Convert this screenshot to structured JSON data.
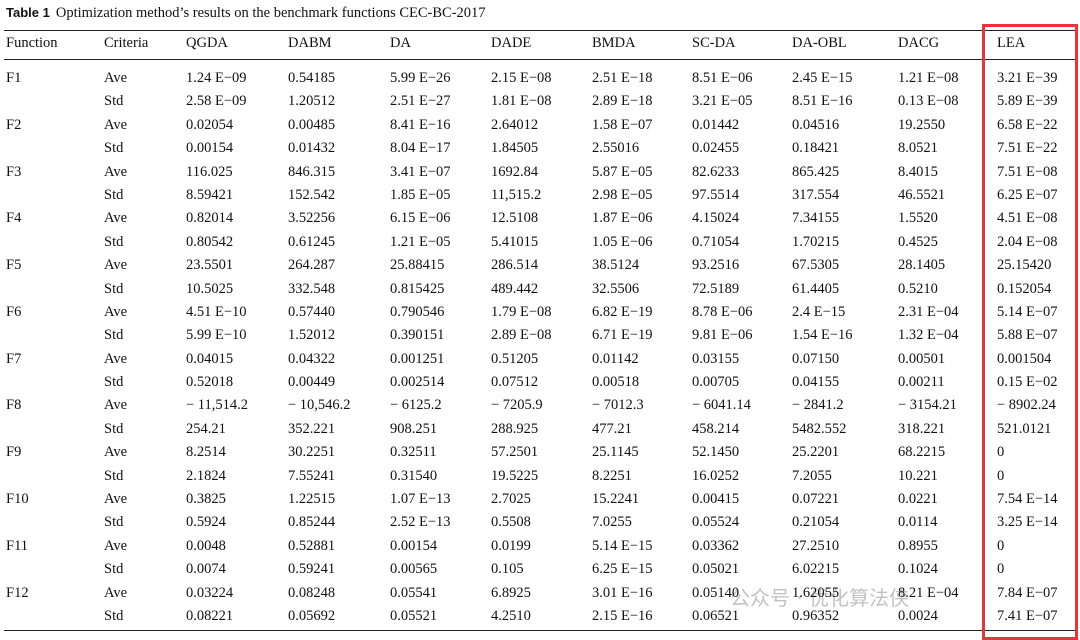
{
  "table": {
    "caption_label": "Table 1",
    "caption": "Optimization method’s results on the benchmark functions CEC-BC-2017",
    "header": [
      "Function",
      "Criteria",
      "QGDA",
      "DABM",
      "DA",
      "DADE",
      "BMDA",
      "SC-DA",
      "DA-OBL",
      "DACG",
      "LEA"
    ],
    "groups": [
      {
        "function": "F1",
        "rows": [
          {
            "criteria": "Ave",
            "values": [
              "1.24 E−09",
              "0.54185",
              "5.99 E−26",
              "2.15 E−08",
              "2.51 E−18",
              "8.51 E−06",
              "2.45 E−15",
              "1.21 E−08",
              "3.21 E−39"
            ]
          },
          {
            "criteria": "Std",
            "values": [
              "2.58 E−09",
              "1.20512",
              "2.51 E−27",
              "1.81 E−08",
              "2.89 E−18",
              "3.21 E−05",
              "8.51 E−16",
              "0.13 E−08",
              "5.89 E−39"
            ]
          }
        ]
      },
      {
        "function": "F2",
        "rows": [
          {
            "criteria": "Ave",
            "values": [
              "0.02054",
              "0.00485",
              "8.41 E−16",
              "2.64012",
              "1.58 E−07",
              "0.01442",
              "0.04516",
              "19.2550",
              "6.58 E−22"
            ]
          },
          {
            "criteria": "Std",
            "values": [
              "0.00154",
              "0.01432",
              "8.04 E−17",
              "1.84505",
              "2.55016",
              "0.02455",
              "0.18421",
              "8.0521",
              "7.51 E−22"
            ]
          }
        ]
      },
      {
        "function": "F3",
        "rows": [
          {
            "criteria": "Ave",
            "values": [
              "116.025",
              "846.315",
              "3.41 E−07",
              "1692.84",
              "5.87 E−05",
              "82.6233",
              "865.425",
              "8.4015",
              "7.51 E−08"
            ]
          },
          {
            "criteria": "Std",
            "values": [
              "8.59421",
              "152.542",
              "1.85 E−05",
              "11,515.2",
              "2.98 E−05",
              "97.5514",
              "317.554",
              "46.5521",
              "6.25 E−07"
            ]
          }
        ]
      },
      {
        "function": "F4",
        "rows": [
          {
            "criteria": "Ave",
            "values": [
              "0.82014",
              "3.52256",
              "6.15 E−06",
              "12.5108",
              "1.87 E−06",
              "4.15024",
              "7.34155",
              "1.5520",
              "4.51 E−08"
            ]
          },
          {
            "criteria": "Std",
            "values": [
              "0.80542",
              "0.61245",
              "1.21 E−05",
              "5.41015",
              "1.05 E−06",
              "0.71054",
              "1.70215",
              "0.4525",
              "2.04 E−08"
            ]
          }
        ]
      },
      {
        "function": "F5",
        "rows": [
          {
            "criteria": "Ave",
            "values": [
              "23.5501",
              "264.287",
              "25.88415",
              "286.514",
              "38.5124",
              "93.2516",
              "67.5305",
              "28.1405",
              "25.15420"
            ]
          },
          {
            "criteria": "Std",
            "values": [
              "10.5025",
              "332.548",
              "0.815425",
              "489.442",
              "32.5506",
              "72.5189",
              "61.4405",
              "0.5210",
              "0.152054"
            ]
          }
        ]
      },
      {
        "function": "F6",
        "rows": [
          {
            "criteria": "Ave",
            "values": [
              "4.51 E−10",
              "0.57440",
              "0.790546",
              "1.79 E−08",
              "6.82 E−19",
              "8.78 E−06",
              "2.4 E−15",
              "2.31 E−04",
              "5.14 E−07"
            ]
          },
          {
            "criteria": "Std",
            "values": [
              "5.99 E−10",
              "1.52012",
              "0.390151",
              "2.89 E−08",
              "6.71 E−19",
              "9.81 E−06",
              "1.54 E−16",
              "1.32 E−04",
              "5.88 E−07"
            ]
          }
        ]
      },
      {
        "function": "F7",
        "rows": [
          {
            "criteria": "Ave",
            "values": [
              "0.04015",
              "0.04322",
              "0.001251",
              "0.51205",
              "0.01142",
              "0.03155",
              "0.07150",
              "0.00501",
              "0.001504"
            ]
          },
          {
            "criteria": "Std",
            "values": [
              "0.52018",
              "0.00449",
              "0.002514",
              "0.07512",
              "0.00518",
              "0.00705",
              "0.04155",
              "0.00211",
              "0.15 E−02"
            ]
          }
        ]
      },
      {
        "function": "F8",
        "rows": [
          {
            "criteria": "Ave",
            "values": [
              "− 11,514.2",
              "− 10,546.2",
              "− 6125.2",
              "− 7205.9",
              "− 7012.3",
              "− 6041.14",
              "− 2841.2",
              "− 3154.21",
              "− 8902.24"
            ]
          },
          {
            "criteria": "Std",
            "values": [
              "254.21",
              "352.221",
              "908.251",
              "288.925",
              "477.21",
              "458.214",
              "5482.552",
              "318.221",
              "521.0121"
            ]
          }
        ]
      },
      {
        "function": "F9",
        "rows": [
          {
            "criteria": "Ave",
            "values": [
              "8.2514",
              "30.2251",
              "0.32511",
              "57.2501",
              "25.1145",
              "52.1450",
              "25.2201",
              "68.2215",
              "0"
            ]
          },
          {
            "criteria": "Std",
            "values": [
              "2.1824",
              "7.55241",
              "0.31540",
              "19.5225",
              "8.2251",
              "16.0252",
              "7.2055",
              "10.221",
              "0"
            ]
          }
        ]
      },
      {
        "function": "F10",
        "rows": [
          {
            "criteria": "Ave",
            "values": [
              "0.3825",
              "1.22515",
              "1.07 E−13",
              "2.7025",
              "15.2241",
              "0.00415",
              "0.07221",
              "0.0221",
              "7.54 E−14"
            ]
          },
          {
            "criteria": "Std",
            "values": [
              "0.5924",
              "0.85244",
              "2.52 E−13",
              "0.5508",
              "7.0255",
              "0.05524",
              "0.21054",
              "0.0114",
              "3.25 E−14"
            ]
          }
        ]
      },
      {
        "function": "F11",
        "rows": [
          {
            "criteria": "Ave",
            "values": [
              "0.0048",
              "0.52881",
              "0.00154",
              "0.0199",
              "5.14 E−15",
              "0.03362",
              "27.2510",
              "0.8955",
              "0"
            ]
          },
          {
            "criteria": "Std",
            "values": [
              "0.0074",
              "0.59241",
              "0.00565",
              "0.105",
              "6.25 E−15",
              "0.05021",
              "6.02215",
              "0.1024",
              "0"
            ]
          }
        ]
      },
      {
        "function": "F12",
        "rows": [
          {
            "criteria": "Ave",
            "values": [
              "0.03224",
              "0.08248",
              "0.05541",
              "6.8925",
              "3.01 E−16",
              "0.05140",
              "1.62055",
              "8.21 E−04",
              "7.84 E−07"
            ]
          },
          {
            "criteria": "Std",
            "values": [
              "0.08221",
              "0.05692",
              "0.05521",
              "4.2510",
              "2.15 E−16",
              "0.06521",
              "0.96352",
              "0.0024",
              "7.41 E−07"
            ]
          }
        ]
      }
    ]
  },
  "watermark": "公众号 · 优化算法侠"
}
